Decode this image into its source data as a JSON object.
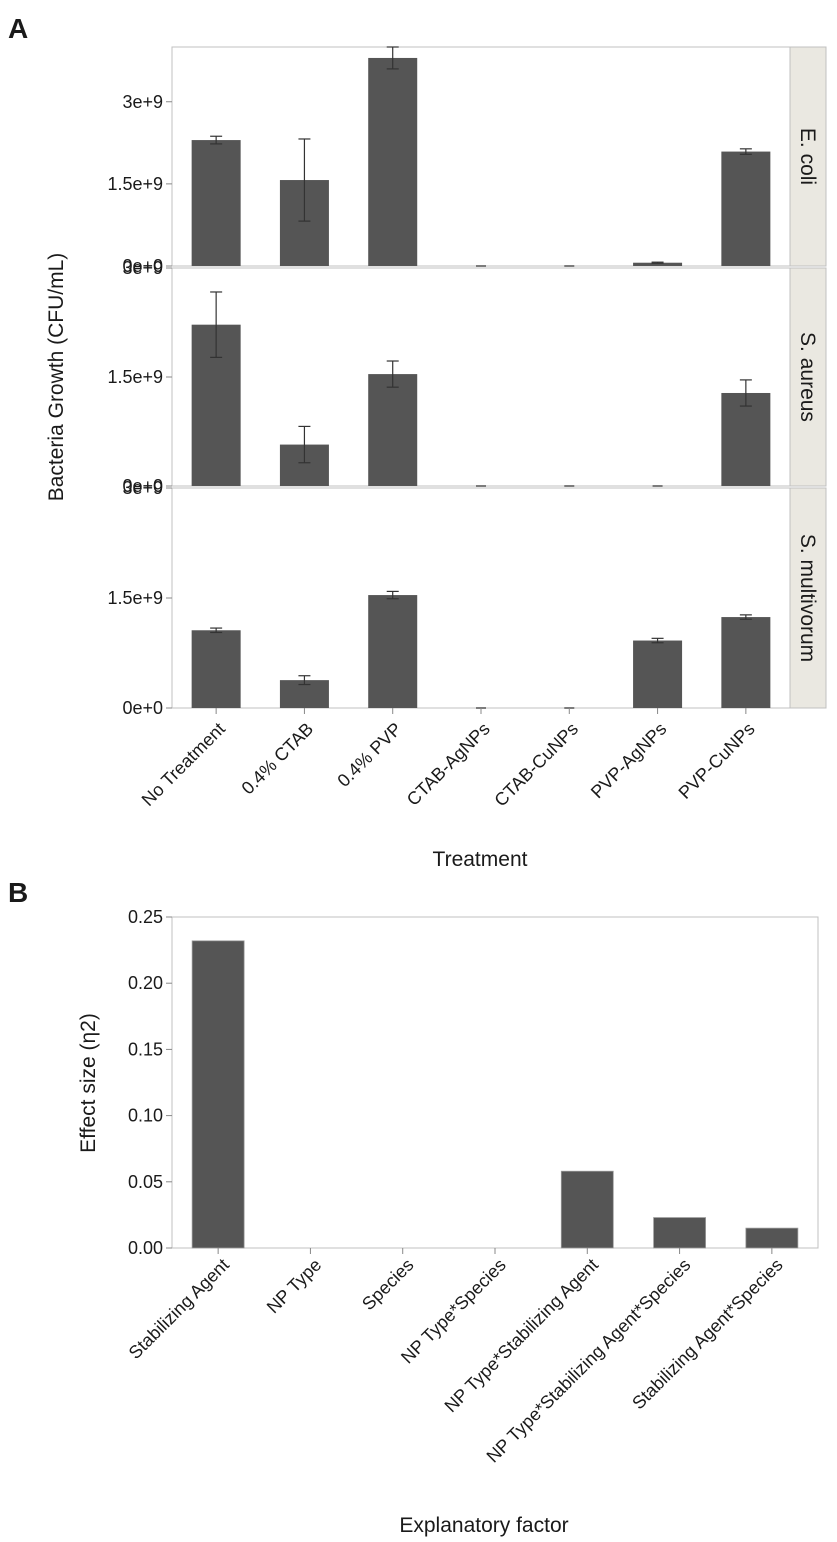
{
  "panel_labels": {
    "a": "A",
    "b": "B"
  },
  "colors": {
    "bar": "#555555",
    "frame": "#c0c0c0",
    "strip_bg": "#eae8e1",
    "errorbar": "#333333",
    "grid": "#cfcfcf"
  },
  "chart_data": [
    {
      "id": "A",
      "type": "bar",
      "facet": "rows",
      "xlabel": "Treatment",
      "ylabel": "Bacteria Growth (CFU/mL)",
      "categories": [
        "No Treatment",
        "0.4% CTAB",
        "0.4% PVP",
        "CTAB-AgNPs",
        "CTAB-CuNPs",
        "PVP-AgNPs",
        "PVP-CuNPs"
      ],
      "yticks": [
        0,
        1500000000,
        3000000000
      ],
      "ytick_labels": [
        "0e+0",
        "1.5e+9",
        "3e+9"
      ],
      "facets": [
        {
          "name": "E. coli",
          "ylim": [
            0,
            4000000000
          ],
          "values": [
            2300000000,
            1570000000,
            3800000000,
            0,
            0,
            60000000,
            2090000000
          ],
          "errors": [
            70000000,
            750000000,
            200000000,
            0,
            0,
            10000000,
            50000000
          ]
        },
        {
          "name": "S. aureus",
          "ylim": [
            0,
            3000000000
          ],
          "values": [
            2220000000,
            570000000,
            1540000000,
            0,
            0,
            0,
            1280000000
          ],
          "errors": [
            450000000,
            250000000,
            180000000,
            0,
            0,
            0,
            180000000
          ]
        },
        {
          "name": "S. multivorum",
          "ylim": [
            0,
            3000000000
          ],
          "values": [
            1060000000,
            380000000,
            1540000000,
            0,
            0,
            920000000,
            1240000000
          ],
          "errors": [
            30000000,
            60000000,
            50000000,
            0,
            0,
            30000000,
            30000000
          ]
        }
      ]
    },
    {
      "id": "B",
      "type": "bar",
      "xlabel": "Explanatory factor",
      "ylabel": "Effect size (η2)",
      "categories": [
        "Stabilizing Agent",
        "NP Type",
        "Species",
        "NP Type*Species",
        "NP Type*Stabilizing Agent",
        "NP Type*Stabilizing Agent*Species",
        "Stabilizing Agent*Species"
      ],
      "values": [
        0.232,
        0,
        0,
        0,
        0.058,
        0.023,
        0.015
      ],
      "ylim": [
        0,
        0.25
      ],
      "yticks": [
        0,
        0.05,
        0.1,
        0.15,
        0.2,
        0.25
      ],
      "ytick_labels": [
        "0.00",
        "0.05",
        "0.10",
        "0.15",
        "0.20",
        "0.25"
      ]
    }
  ]
}
